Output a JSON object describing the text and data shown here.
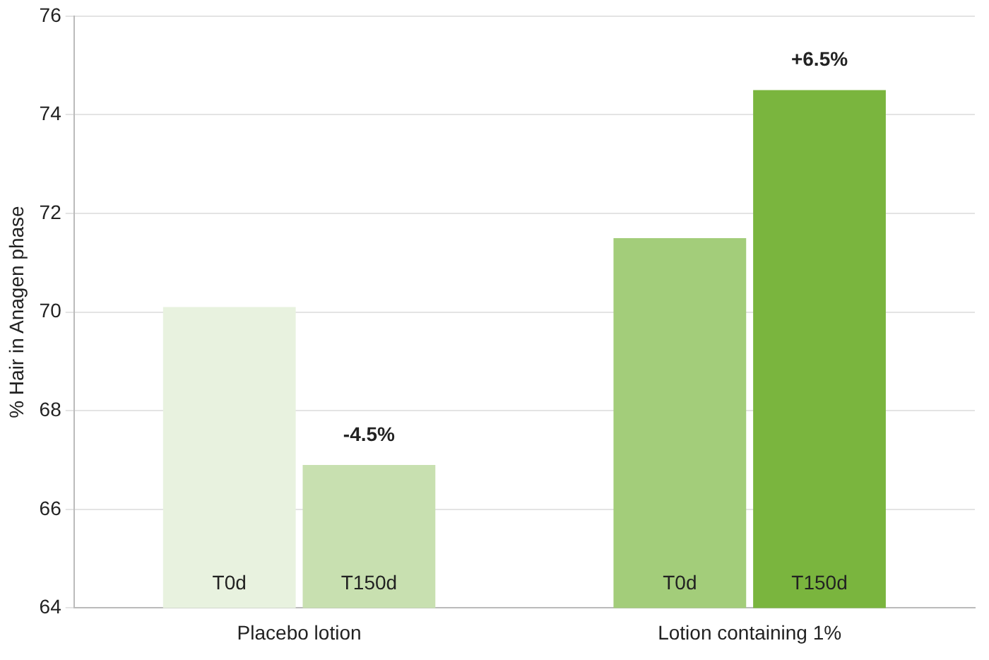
{
  "chart_data": {
    "type": "bar",
    "ylabel": "% Hair in Anagen phase",
    "categories": [
      "Placebo lotion",
      "Lotion containing 1%"
    ],
    "series": [
      {
        "name": "T0d",
        "colors": [
          "#e8f2df",
          "#a3cd7a"
        ],
        "values": [
          70.1,
          71.5
        ]
      },
      {
        "name": "T150d",
        "colors": [
          "#c8e0b0",
          "#7ab53e"
        ],
        "values": [
          66.9,
          74.5
        ]
      }
    ],
    "ylim": [
      64,
      76
    ],
    "yticks": [
      64,
      66,
      68,
      70,
      72,
      74,
      76
    ],
    "grid": "y",
    "legend": false,
    "annotations": [
      {
        "text": "-4.5%",
        "x": "Placebo lotion",
        "y": 66.9
      },
      {
        "text": "+6.5%",
        "x": "Lotion containing 1%",
        "y": 74.5
      }
    ]
  }
}
